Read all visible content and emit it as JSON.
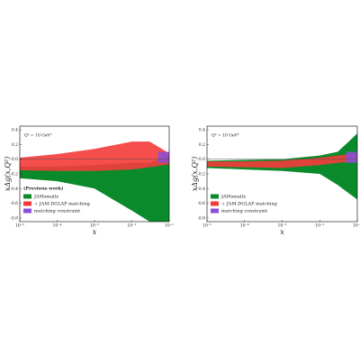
{
  "chart_data": [
    {
      "type": "band",
      "xlabel": "x",
      "ylabel": "xΔg(x,Q²)",
      "annotation": "Q² = 10 GeV²",
      "note": "(Previous work)",
      "xlog": true,
      "xlim": [
        1e-05,
        0.1
      ],
      "ylim": [
        -0.85,
        0.45
      ],
      "xticks": [
        {
          "value": 1e-05,
          "label": "10⁻⁵"
        },
        {
          "value": 0.0001,
          "label": "10⁻⁴"
        },
        {
          "value": 0.001,
          "label": "10⁻³"
        },
        {
          "value": 0.01,
          "label": "10⁻²"
        },
        {
          "value": 0.1,
          "label": "10⁻¹"
        }
      ],
      "yticks": [
        0.4,
        0.2,
        {
          "value": 0,
          "label": "0.0"
        },
        -0.2,
        -0.4,
        -0.6,
        -0.8
      ],
      "x": [
        1e-05,
        0.0001,
        0.001,
        0.01,
        0.03,
        0.1
      ],
      "series": [
        {
          "name": "JAMsmallx",
          "color": "#0b8a2c",
          "upper": [
            -0.1,
            -0.1,
            -0.08,
            -0.05,
            -0.05,
            0.05
          ],
          "lower": [
            -0.26,
            -0.3,
            -0.4,
            -0.7,
            -0.85,
            -0.85
          ]
        },
        {
          "name": "+ JAM-DGLAP matching",
          "color": "#f53a3a",
          "upper": [
            0.02,
            0.07,
            0.14,
            0.24,
            0.24,
            0.08
          ],
          "lower": [
            -0.15,
            -0.16,
            -0.16,
            -0.14,
            -0.11,
            -0.07
          ]
        }
      ],
      "constraint": {
        "name": "matching constraint",
        "color": "#8a4fd8",
        "x": [
          0.05,
          0.1
        ],
        "y": [
          -0.05,
          0.1
        ]
      }
    },
    {
      "type": "band",
      "xlabel": "x",
      "ylabel": "xΔg(x,Q²)",
      "annotation": "Q² = 10 GeV²",
      "xlog": true,
      "xlim": [
        1e-05,
        0.1
      ],
      "ylim": [
        -0.85,
        0.45
      ],
      "xticks": [
        {
          "value": 1e-05,
          "label": "10⁻⁵"
        },
        {
          "value": 0.0001,
          "label": "10⁻⁴"
        },
        {
          "value": 0.001,
          "label": "10⁻³"
        },
        {
          "value": 0.01,
          "label": "10⁻²"
        },
        {
          "value": 0.1,
          "label": "10⁻¹"
        }
      ],
      "yticks": [
        0.4,
        0.2,
        {
          "value": 0,
          "label": "0.0"
        },
        -0.2,
        -0.4,
        -0.6,
        -0.8
      ],
      "x": [
        1e-05,
        0.0001,
        0.001,
        0.01,
        0.03,
        0.1
      ],
      "series": [
        {
          "name": "JAMsmallx",
          "color": "#0b8a2c",
          "upper": [
            -0.02,
            -0.01,
            0.0,
            0.05,
            0.1,
            0.35
          ],
          "lower": [
            -0.12,
            -0.14,
            -0.16,
            -0.2,
            -0.35,
            -0.55
          ]
        },
        {
          "name": "+ JAM-DGLAP matching",
          "color": "#f53a3a",
          "upper": [
            -0.03,
            -0.03,
            -0.02,
            0.02,
            0.05,
            0.08
          ],
          "lower": [
            -0.1,
            -0.11,
            -0.12,
            -0.08,
            -0.05,
            -0.02
          ]
        }
      ],
      "constraint": {
        "name": "matching constraint",
        "color": "#8a4fd8",
        "x": [
          0.05,
          0.1
        ],
        "y": [
          -0.05,
          0.1
        ]
      }
    }
  ]
}
